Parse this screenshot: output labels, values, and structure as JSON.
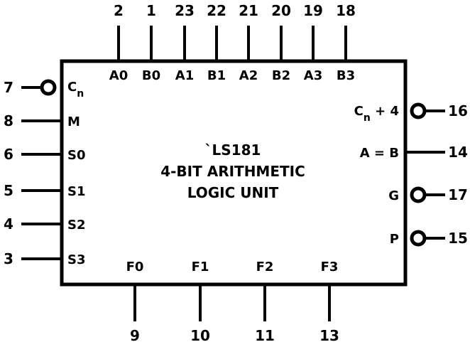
{
  "chip": {
    "part": "`LS181",
    "line2": "4-BIT ARITHMETIC",
    "line3": "LOGIC UNIT"
  },
  "pins": {
    "top": [
      {
        "num": "2",
        "label": "A0"
      },
      {
        "num": "1",
        "label": "B0"
      },
      {
        "num": "23",
        "label": "A1"
      },
      {
        "num": "22",
        "label": "B1"
      },
      {
        "num": "21",
        "label": "A2"
      },
      {
        "num": "20",
        "label": "B2"
      },
      {
        "num": "19",
        "label": "A3"
      },
      {
        "num": "18",
        "label": "B3"
      }
    ],
    "left": [
      {
        "num": "7",
        "label_main": "C",
        "label_sub": "n",
        "inverted": true
      },
      {
        "num": "8",
        "label": "M"
      },
      {
        "num": "6",
        "label": "S0"
      },
      {
        "num": "5",
        "label": "S1"
      },
      {
        "num": "4",
        "label": "S2"
      },
      {
        "num": "3",
        "label": "S3"
      }
    ],
    "right": [
      {
        "num": "16",
        "label_main": "C",
        "label_sub": "n",
        "label_tail": " + 4",
        "inverted": true
      },
      {
        "num": "14",
        "label": "A = B"
      },
      {
        "num": "17",
        "label": "G",
        "inverted": true
      },
      {
        "num": "15",
        "label": "P",
        "inverted": true
      }
    ],
    "bottom": [
      {
        "num": "9",
        "label": "F0"
      },
      {
        "num": "10",
        "label": "F1"
      },
      {
        "num": "11",
        "label": "F2"
      },
      {
        "num": "13",
        "label": "F3"
      }
    ]
  }
}
